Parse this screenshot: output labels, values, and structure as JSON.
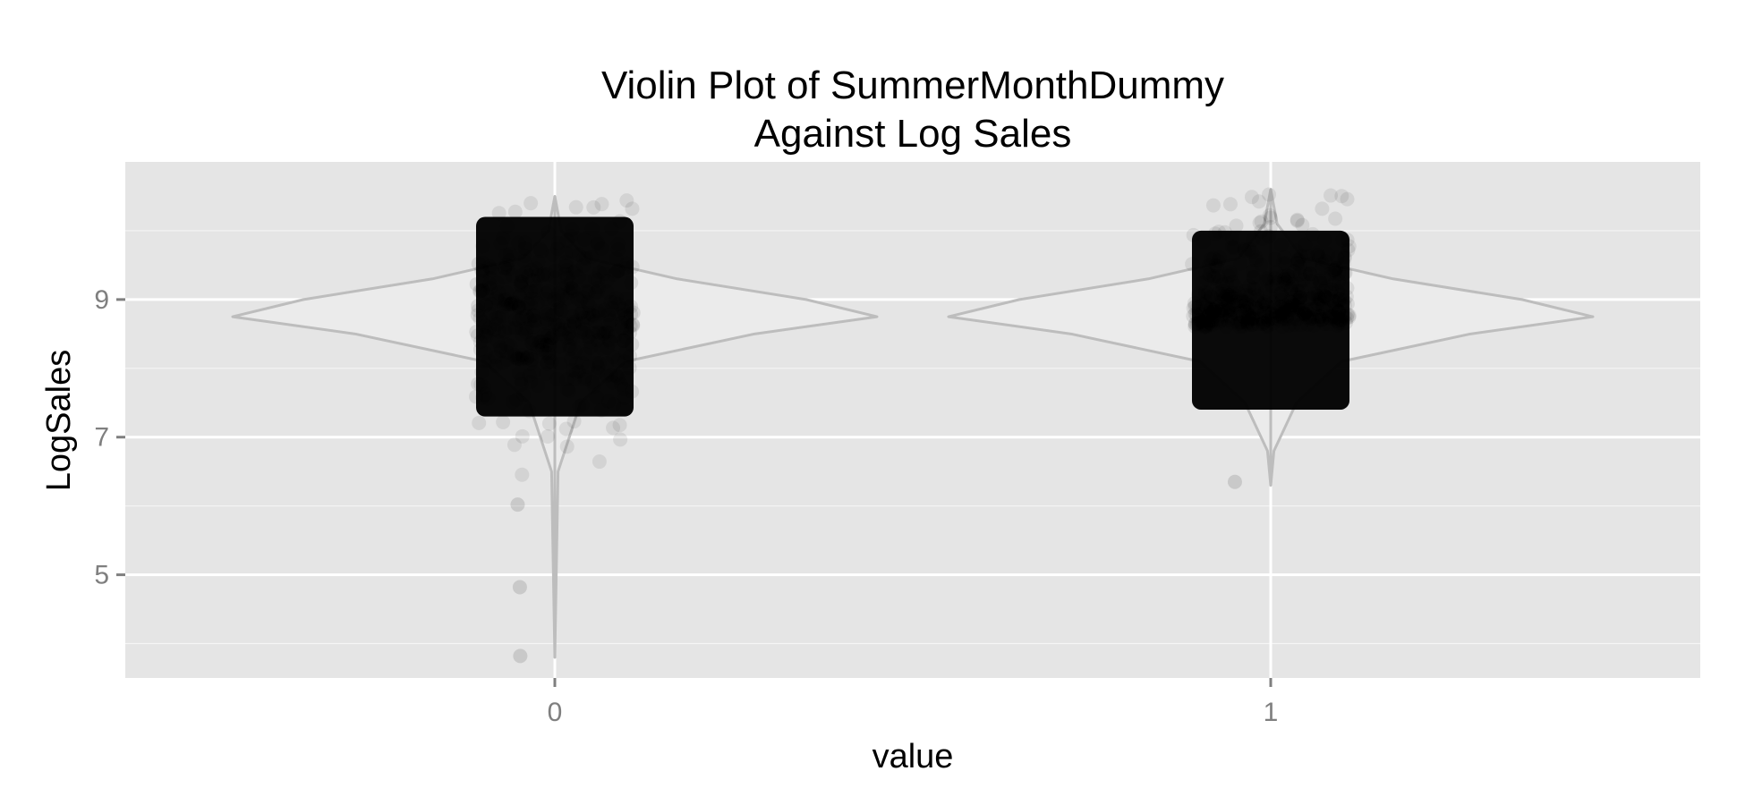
{
  "chart_data": {
    "type": "violin",
    "title": [
      "Violin Plot of SummerMonthDummy",
      "Against Log Sales"
    ],
    "xlabel": "value",
    "ylabel": "LogSales",
    "categories": [
      "0",
      "1"
    ],
    "ylim": [
      3.5,
      11.0
    ],
    "y_ticks": [
      5,
      7,
      9
    ],
    "y_minor_ticks": [
      4,
      6,
      8,
      10
    ],
    "grid": true,
    "colors": {
      "panel": "#e5e5e5",
      "grid": "#ffffff",
      "violin_outline": "#bdbdbd",
      "points": "#000000"
    },
    "violins": [
      {
        "category": "0",
        "y_min": 3.8,
        "y_max": 10.5,
        "max_half_width_fraction_of_gap": 0.45,
        "profile": [
          {
            "y": 3.8,
            "w": 0.0
          },
          {
            "y": 6.5,
            "w": 0.01
          },
          {
            "y": 7.5,
            "w": 0.08
          },
          {
            "y": 8.1,
            "w": 0.22
          },
          {
            "y": 8.5,
            "w": 0.62
          },
          {
            "y": 8.75,
            "w": 1.0
          },
          {
            "y": 9.0,
            "w": 0.78
          },
          {
            "y": 9.3,
            "w": 0.38
          },
          {
            "y": 9.6,
            "w": 0.1
          },
          {
            "y": 10.0,
            "w": 0.02
          },
          {
            "y": 10.5,
            "w": 0.0
          }
        ],
        "dense_band": [
          7.3,
          10.2
        ],
        "outliers": [
          4.82,
          3.82,
          6.02
        ]
      },
      {
        "category": "1",
        "y_min": 6.3,
        "y_max": 10.6,
        "max_half_width_fraction_of_gap": 0.45,
        "profile": [
          {
            "y": 6.3,
            "w": 0.0
          },
          {
            "y": 6.8,
            "w": 0.01
          },
          {
            "y": 7.5,
            "w": 0.08
          },
          {
            "y": 8.1,
            "w": 0.22
          },
          {
            "y": 8.5,
            "w": 0.62
          },
          {
            "y": 8.75,
            "w": 1.0
          },
          {
            "y": 9.0,
            "w": 0.78
          },
          {
            "y": 9.3,
            "w": 0.38
          },
          {
            "y": 9.6,
            "w": 0.1
          },
          {
            "y": 10.1,
            "w": 0.02
          },
          {
            "y": 10.6,
            "w": 0.0
          }
        ],
        "dense_band": [
          7.4,
          10.0
        ],
        "outliers": [
          6.35
        ]
      }
    ]
  }
}
